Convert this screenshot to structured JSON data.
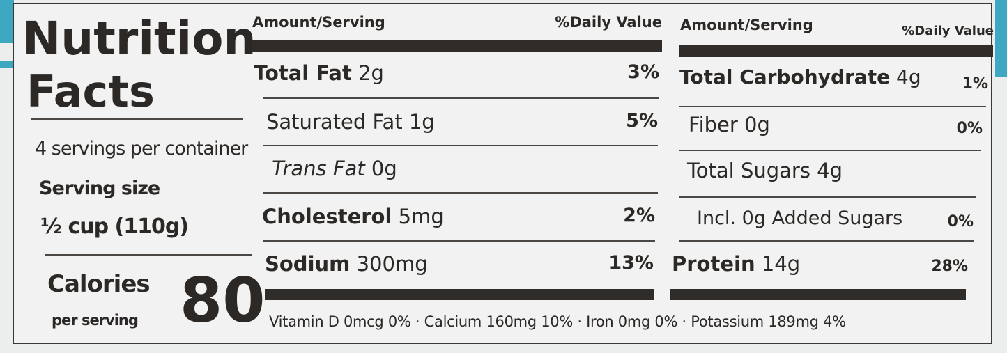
{
  "label": {
    "title_line1": "Nutrition",
    "title_line2": "Facts",
    "servings_per_container": "4 servings per container",
    "serving_size_label": "Serving size",
    "serving_size_value": "½ cup (110g)",
    "calories_label": "Calories",
    "calories_sub": "per serving",
    "calories_value": "80"
  },
  "left_table": {
    "header_amount": "Amount/Serving",
    "header_dv": "%Daily Value",
    "rows": [
      {
        "name": "Total Fat",
        "amount": "2g",
        "dv": "3%"
      },
      {
        "name": "Saturated Fat",
        "amount": "1g",
        "dv": "5%"
      },
      {
        "name": "Trans Fat",
        "amount": "0g",
        "dv": ""
      },
      {
        "name": "Cholesterol",
        "amount": "5mg",
        "dv": "2%"
      },
      {
        "name": "Sodium",
        "amount": "300mg",
        "dv": "13%"
      }
    ]
  },
  "right_table": {
    "header_amount": "Amount/Serving",
    "header_dv": "%Daily Value",
    "rows": [
      {
        "name": "Total Carbohydrate",
        "amount": "4g",
        "dv": "1%"
      },
      {
        "name": "Fiber",
        "amount": "0g",
        "dv": "0%"
      },
      {
        "name": "Total Sugars",
        "amount": "4g",
        "dv": ""
      },
      {
        "name": "Incl. 0g Added Sugars",
        "amount": "",
        "dv": "0%"
      },
      {
        "name": "Protein",
        "amount": "14g",
        "dv": "28%"
      }
    ]
  },
  "micronutrients": "Vitamin D 0mcg 0% · Calcium 160mg 10% · Iron 0mg 0% · Potassium 189mg 4%",
  "colors": {
    "accent": "#3ea7c2",
    "ink": "#2b2826",
    "background": "#eceeed"
  }
}
